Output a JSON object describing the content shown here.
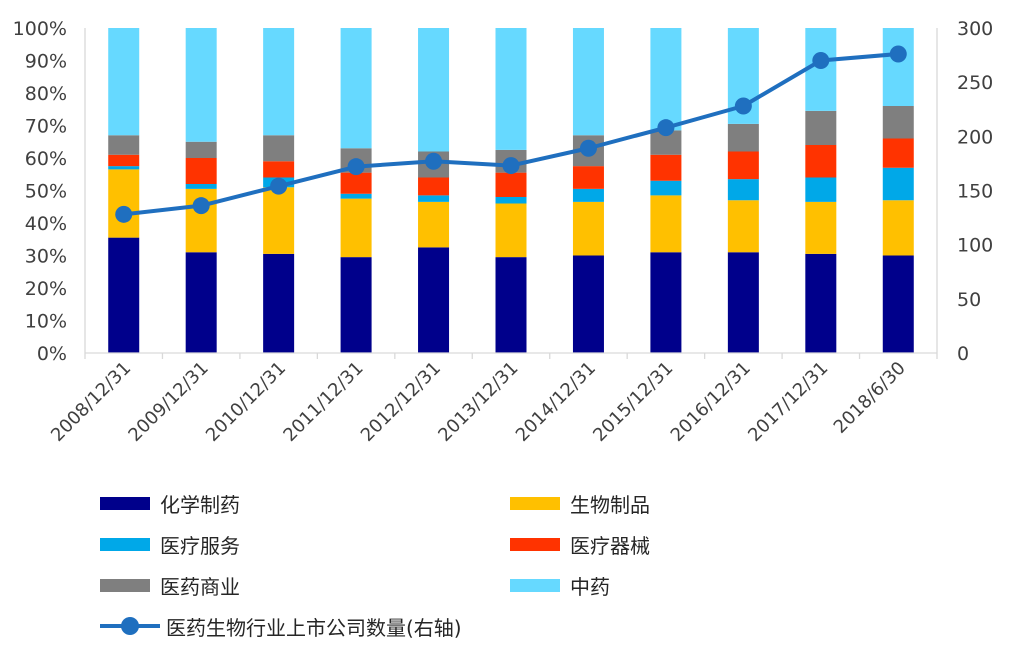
{
  "chart_data": {
    "type": "bar",
    "stacked": true,
    "categories": [
      "2008/12/31",
      "2009/12/31",
      "2010/12/31",
      "2011/12/31",
      "2012/12/31",
      "2013/12/31",
      "2014/12/31",
      "2015/12/31",
      "2016/12/31",
      "2017/12/31",
      "2018/6/30"
    ],
    "series": [
      {
        "name": "化学制药",
        "color": "#00008B",
        "values": [
          35.5,
          31,
          30.5,
          29.5,
          32.5,
          29.5,
          30,
          31,
          31,
          30.5,
          30
        ]
      },
      {
        "name": "生物制品",
        "color": "#FFC000",
        "values": [
          21,
          19.5,
          20.5,
          18,
          14,
          16.5,
          16.5,
          17.5,
          16,
          16,
          17
        ]
      },
      {
        "name": "医疗服务",
        "color": "#00A8E8",
        "values": [
          1,
          1.5,
          3,
          1.5,
          2,
          2,
          4,
          4.5,
          6.5,
          7.5,
          10
        ]
      },
      {
        "name": "医疗器械",
        "color": "#FF3300",
        "values": [
          3.5,
          8,
          5,
          6.5,
          5.5,
          7.5,
          7,
          8,
          8.5,
          10,
          9
        ]
      },
      {
        "name": "医药商业",
        "color": "#7F7F7F",
        "values": [
          6,
          5,
          8,
          7.5,
          8,
          7,
          9.5,
          7.5,
          8.5,
          10.5,
          10
        ]
      },
      {
        "name": "中药",
        "color": "#66D9FF",
        "values": [
          33,
          35,
          33,
          37,
          38,
          37.5,
          33,
          31.5,
          29.5,
          25.5,
          24
        ]
      }
    ],
    "line_series": {
      "name": "医药生物行业上市公司数量(右轴)",
      "color": "#1F6FBF",
      "values": [
        128,
        136,
        154,
        172,
        177,
        173,
        189,
        208,
        228,
        270,
        276
      ]
    },
    "y_left": {
      "ticks": [
        "0%",
        "10%",
        "20%",
        "30%",
        "40%",
        "50%",
        "60%",
        "70%",
        "80%",
        "90%",
        "100%"
      ],
      "ylim": [
        0,
        100
      ]
    },
    "y_right": {
      "ticks": [
        "0",
        "50",
        "100",
        "150",
        "200",
        "250",
        "300"
      ],
      "ylim": [
        0,
        300
      ]
    },
    "title": "",
    "xlabel": "",
    "ylabel": "",
    "legend_position": "bottom"
  }
}
